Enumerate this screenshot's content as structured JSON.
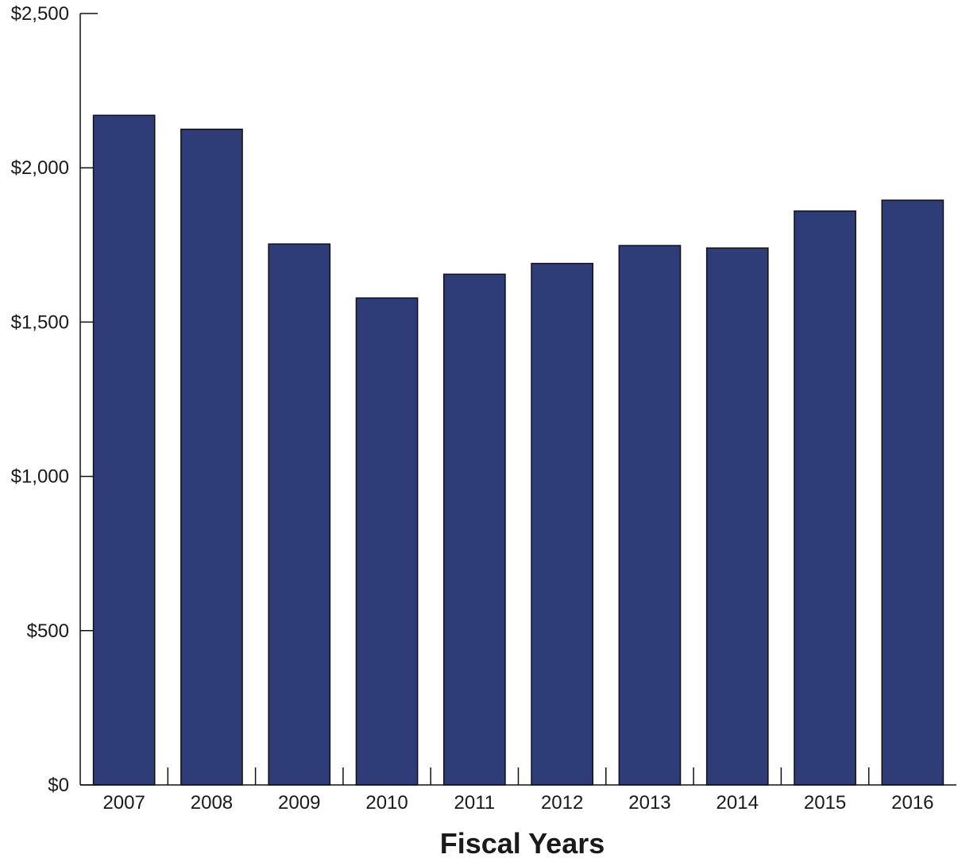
{
  "chart_data": {
    "type": "bar",
    "categories": [
      "2007",
      "2008",
      "2009",
      "2010",
      "2011",
      "2012",
      "2013",
      "2014",
      "2015",
      "2016"
    ],
    "values": [
      2170,
      2125,
      1753,
      1578,
      1655,
      1690,
      1748,
      1740,
      1860,
      1895
    ],
    "xlabel": "Fiscal Years",
    "ylabel": "",
    "ylim": [
      0,
      2500
    ],
    "yticks": [
      0,
      500,
      1000,
      1500,
      2000,
      2500
    ],
    "ytick_labels": [
      "$0",
      "$500",
      "$1,000",
      "$1,500",
      "$2,000",
      "$2,500"
    ],
    "grid": false,
    "colors": {
      "bar": "#2e3d78",
      "bar_edge": "#111111",
      "axis": "#111111"
    }
  }
}
